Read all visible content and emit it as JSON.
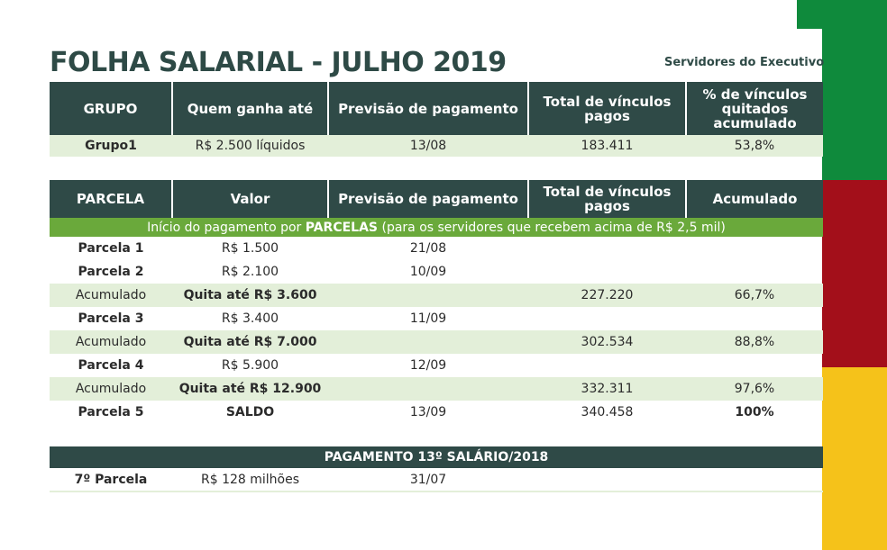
{
  "title": "FOLHA SALARIAL - JULHO 2019",
  "subtitle": "Servidores do Executivo",
  "colors": {
    "header_bg": "#2f4a47",
    "shade": "#e3efd9",
    "banner": "#6aa93b",
    "flag_green": "#0f8a3c",
    "flag_red": "#a30f1a",
    "flag_yellow": "#f5c21a"
  },
  "table1": {
    "headers": [
      "GRUPO",
      "Quem ganha até",
      "Previsão de pagamento",
      "Total de vínculos pagos",
      "% de vínculos quitados acumulado"
    ],
    "rows": [
      [
        "Grupo1",
        "R$ 2.500 líquidos",
        "13/08",
        "183.411",
        "53,8%"
      ]
    ]
  },
  "table2": {
    "headers": [
      "PARCELA",
      "Valor",
      "Previsão de pagamento",
      "Total de vínculos pagos",
      "Acumulado"
    ],
    "banner": {
      "prefix": "Início do pagamento por ",
      "bold": "PARCELAS",
      "suffix": " (para os servidores que recebem acima de R$ 2,5 mil)"
    },
    "rows": [
      [
        "Parcela 1",
        "R$ 1.500",
        "21/08",
        "",
        ""
      ],
      [
        "Parcela 2",
        "R$ 2.100",
        "10/09",
        "",
        ""
      ],
      [
        "Acumulado",
        "Quita até R$ 3.600",
        "",
        "227.220",
        "66,7%"
      ],
      [
        "Parcela 3",
        "R$ 3.400",
        "11/09",
        "",
        ""
      ],
      [
        "Acumulado",
        "Quita até R$ 7.000",
        "",
        "302.534",
        "88,8%"
      ],
      [
        "Parcela 4",
        "R$ 5.900",
        "12/09",
        "",
        ""
      ],
      [
        "Acumulado",
        "Quita até R$ 12.900",
        "",
        "332.311",
        "97,6%"
      ],
      [
        "Parcela 5",
        "SALDO",
        "13/09",
        "340.458",
        "100%"
      ]
    ]
  },
  "table3": {
    "header": "PAGAMENTO 13º SALÁRIO/2018",
    "rows": [
      [
        "7º Parcela",
        "R$ 128 milhões",
        "31/07",
        "",
        ""
      ]
    ]
  }
}
